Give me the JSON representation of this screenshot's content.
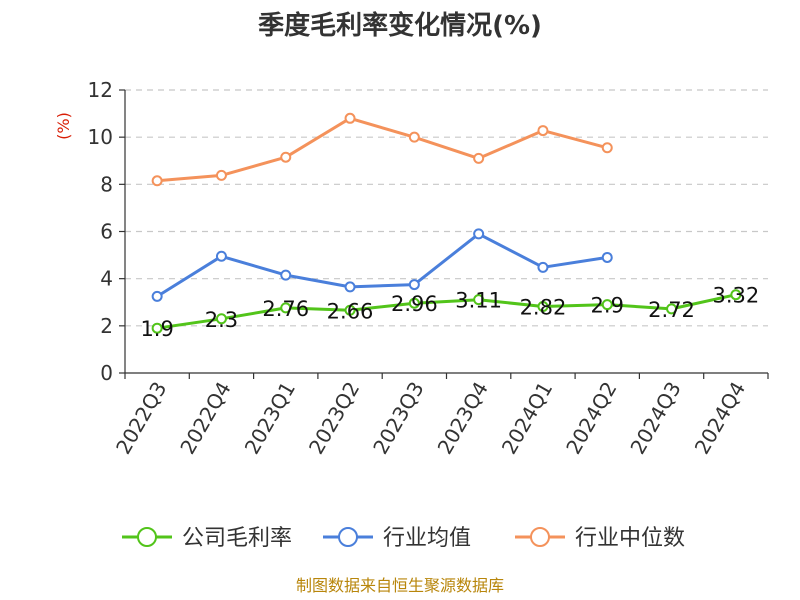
{
  "chart_data": {
    "type": "line",
    "title": "季度毛利率变化情况(%)",
    "ylabel": "(%)",
    "ylim": [
      0,
      12
    ],
    "yticks": [
      0,
      2,
      4,
      6,
      8,
      10,
      12
    ],
    "grid": true,
    "legend_position": "bottom",
    "categories": [
      "2022Q3",
      "2022Q4",
      "2023Q1",
      "2023Q2",
      "2023Q3",
      "2023Q4",
      "2024Q1",
      "2024Q2",
      "2024Q3",
      "2024Q4"
    ],
    "series": [
      {
        "name": "公司毛利率",
        "color": "#52c41a",
        "show_labels": true,
        "values": [
          1.9,
          2.3,
          2.76,
          2.66,
          2.96,
          3.11,
          2.82,
          2.9,
          2.72,
          3.32
        ]
      },
      {
        "name": "行业均值",
        "color": "#4a7fdb",
        "show_labels": false,
        "values": [
          3.25,
          4.95,
          4.15,
          3.65,
          3.75,
          5.9,
          4.48,
          4.9,
          null,
          null
        ]
      },
      {
        "name": "行业中位数",
        "color": "#f4925b",
        "show_labels": false,
        "values": [
          8.15,
          8.38,
          9.15,
          10.8,
          10.0,
          9.1,
          10.28,
          9.55,
          null,
          null
        ]
      }
    ]
  },
  "source": "制图数据来自恒生聚源数据库"
}
